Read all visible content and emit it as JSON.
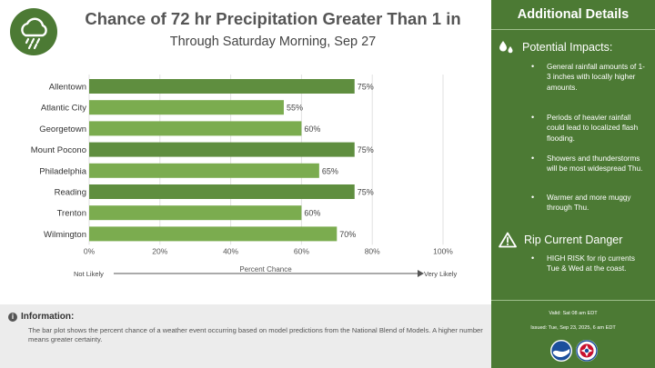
{
  "header": {
    "title": "Chance of 72 hr Precipitation Greater Than 1 in",
    "subtitle": "Through Saturday Morning, Sep 27",
    "logo_icon": "rain-cloud-icon"
  },
  "chart_data": {
    "type": "bar",
    "orientation": "horizontal",
    "categories": [
      "Allentown",
      "Atlantic City",
      "Georgetown",
      "Mount Pocono",
      "Philadelphia",
      "Reading",
      "Trenton",
      "Wilmington"
    ],
    "values": [
      75,
      55,
      60,
      75,
      65,
      75,
      60,
      70
    ],
    "value_labels": [
      "75%",
      "55%",
      "60%",
      "75%",
      "65%",
      "75%",
      "60%",
      "70%"
    ],
    "xlim": [
      0,
      100
    ],
    "xticks": [
      0,
      20,
      40,
      60,
      80,
      100
    ],
    "xtick_labels": [
      "0%",
      "20%",
      "40%",
      "60%",
      "80%",
      "100%"
    ],
    "xlabel": "Percent Chance",
    "scale_left": "Not Likely",
    "scale_right": "Very Likely",
    "grid": "vertical",
    "colors": {
      "bar_dark": "#5f8e3f",
      "bar_light": "#7bac4f"
    }
  },
  "info": {
    "title": "Information:",
    "body": "The bar plot shows the percent chance of a weather event occurring based on model predictions from the National Blend of Models. A higher number means greater certainty."
  },
  "side": {
    "title": "Additional Details",
    "impacts": {
      "title": "Potential Impacts:",
      "icon": "water-drops-icon",
      "items": [
        "General rainfall amounts of 1-3 inches with locally higher amounts.",
        "Periods of heavier rainfall could lead to localized flash flooding.",
        "Showers and thunderstorms will be most widespread Thu.",
        "Warmer and more muggy through Thu."
      ]
    },
    "rip": {
      "title": "Rip Current Danger",
      "icon": "warning-triangle-icon",
      "items": [
        "HIGH RISK  for rip currents Tue & Wed at the coast."
      ]
    },
    "valid": "Valid: Sat 08 am EDT",
    "issued": "Issued: Tue, Sep 23, 2025, 6 am EDT",
    "logos": [
      "noaa-logo",
      "nws-logo"
    ]
  },
  "colors": {
    "accent": "#4c7a34",
    "info_bg": "#ececec"
  }
}
